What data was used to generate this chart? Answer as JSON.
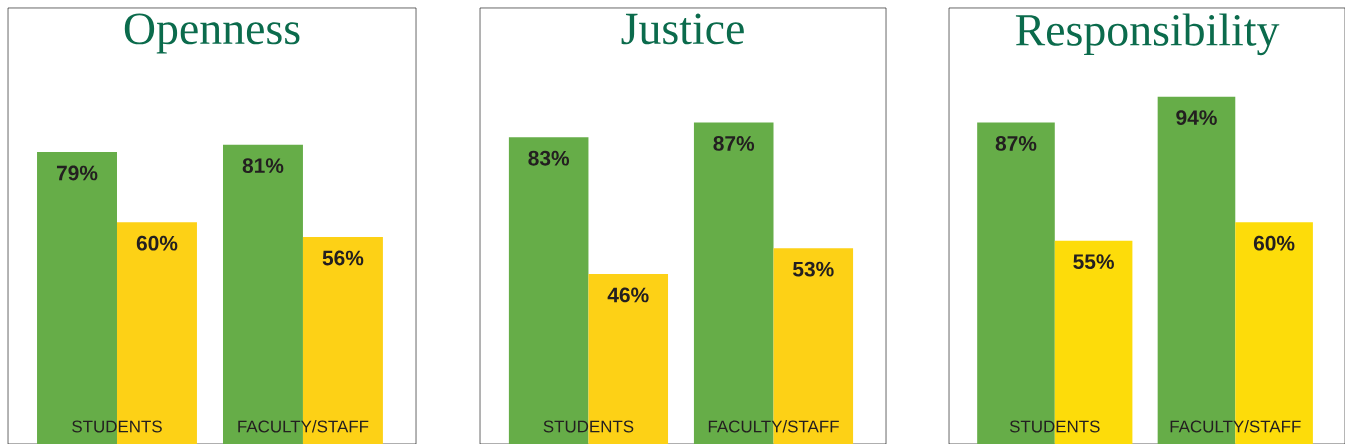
{
  "chart_data": [
    {
      "type": "bar",
      "title": "Openness",
      "categories": [
        "STUDENTS",
        "FACULTY/STAFF"
      ],
      "ylim": [
        0,
        118
      ],
      "series": [
        {
          "color": "#66ad48",
          "values": [
            79,
            81
          ],
          "value_labels": [
            "79%",
            "81%"
          ]
        },
        {
          "color": "#fdd116",
          "values": [
            60,
            56
          ],
          "value_labels": [
            "60%",
            "56%"
          ]
        }
      ]
    },
    {
      "type": "bar",
      "title": "Justice",
      "categories": [
        "STUDENTS",
        "FACULTY/STAFF"
      ],
      "ylim": [
        0,
        118
      ],
      "series": [
        {
          "color": "#66ad48",
          "values": [
            83,
            87
          ],
          "value_labels": [
            "83%",
            "87%"
          ]
        },
        {
          "color": "#fdd116",
          "values": [
            46,
            53
          ],
          "value_labels": [
            "46%",
            "53%"
          ]
        }
      ]
    },
    {
      "type": "bar",
      "title": "Responsibility",
      "categories": [
        "STUDENTS",
        "FACULTY/STAFF"
      ],
      "ylim": [
        0,
        118
      ],
      "series": [
        {
          "color": "#66ad48",
          "values": [
            87,
            94
          ],
          "value_labels": [
            "87%",
            "94%"
          ]
        },
        {
          "color": "#fddc0a",
          "values": [
            55,
            60
          ],
          "value_labels": [
            "55%",
            "60%"
          ]
        }
      ]
    }
  ]
}
